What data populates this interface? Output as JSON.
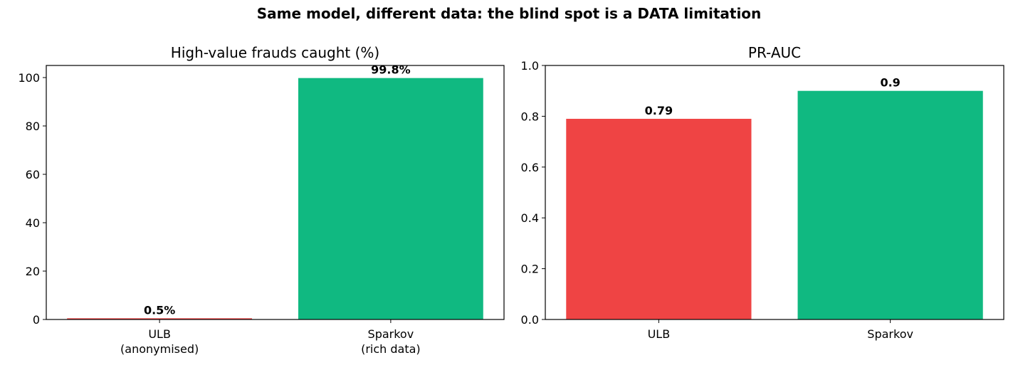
{
  "figure": {
    "suptitle": "Same model, different data: the blind spot is a DATA limitation"
  },
  "colors": {
    "ulb": "#ef4444",
    "sparkov": "#10b981",
    "axis": "#000000",
    "text": "#000000"
  },
  "chart_data": [
    {
      "type": "bar",
      "title": "High-value frauds caught (%)",
      "categories": [
        "ULB\n(anonymised)",
        "Sparkov\n(rich data)"
      ],
      "values": [
        0.5,
        99.8
      ],
      "data_labels": [
        "0.5%",
        "99.8%"
      ],
      "bar_colors": [
        "#ef4444",
        "#10b981"
      ],
      "xlabel": "",
      "ylabel": "",
      "ylim": [
        0,
        105
      ],
      "yticks": [
        0,
        20,
        40,
        60,
        80,
        100
      ],
      "ytick_labels": [
        "0",
        "20",
        "40",
        "60",
        "80",
        "100"
      ],
      "grid": false,
      "legend": "none"
    },
    {
      "type": "bar",
      "title": "PR-AUC",
      "categories": [
        "ULB",
        "Sparkov"
      ],
      "values": [
        0.79,
        0.9
      ],
      "data_labels": [
        "0.79",
        "0.9"
      ],
      "bar_colors": [
        "#ef4444",
        "#10b981"
      ],
      "xlabel": "",
      "ylabel": "",
      "ylim": [
        0,
        1.0
      ],
      "yticks": [
        0,
        0.2,
        0.4,
        0.6,
        0.8,
        1.0
      ],
      "ytick_labels": [
        "0.0",
        "0.2",
        "0.4",
        "0.6",
        "0.8",
        "1.0"
      ],
      "grid": false,
      "legend": "none"
    }
  ]
}
